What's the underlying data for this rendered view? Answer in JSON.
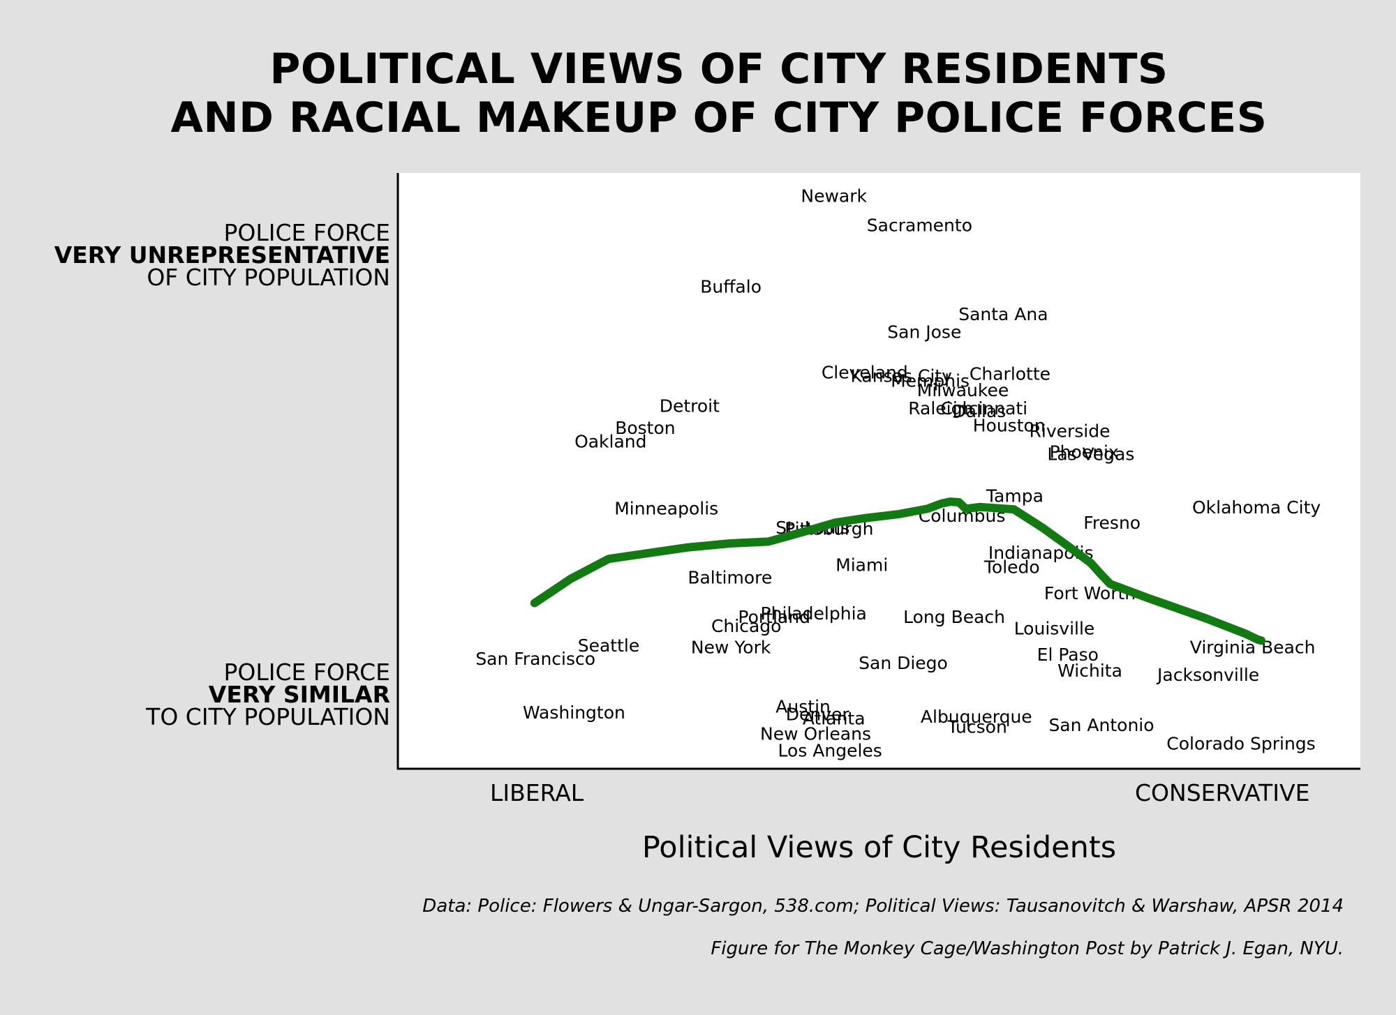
{
  "title_line1": "POLITICAL VIEWS OF CITY RESIDENTS",
  "title_line2": "AND RACIAL MAKEUP OF CITY POLICE FORCES",
  "y_top": {
    "line1": "POLICE FORCE",
    "line2": "VERY UNREPRESENTATIVE",
    "line3": "OF CITY POPULATION"
  },
  "y_bottom": {
    "line1": "POLICE FORCE",
    "line2": "VERY SIMILAR",
    "line3": "TO CITY POPULATION"
  },
  "x_left": "LIBERAL",
  "x_right": "CONSERVATIVE",
  "xlabel": "Political Views of City Residents",
  "source_line1": "Data: Police: Flowers & Ungar-Sargon, 538.com; Political Views: Tausanovitch & Warshaw, APSR 2014",
  "source_line2": "Figure for The Monkey Cage/Washington Post by Patrick J. Egan, NYU.",
  "colors": {
    "background": "#e1e1e1",
    "plot": "#ffffff",
    "trend": "#137a13"
  },
  "chart_data": {
    "type": "scatter",
    "x_scale": "liberal (0) to conservative (1)",
    "y_scale": "police force similar to city population (0) to very unrepresentative (1)",
    "xlim": [
      0,
      1
    ],
    "ylim": [
      0,
      1
    ],
    "grid": false,
    "points": [
      {
        "label": "Newark",
        "x": 0.453,
        "y": 0.962
      },
      {
        "label": "Sacramento",
        "x": 0.542,
        "y": 0.913
      },
      {
        "label": "Buffalo",
        "x": 0.346,
        "y": 0.81
      },
      {
        "label": "Santa Ana",
        "x": 0.629,
        "y": 0.764
      },
      {
        "label": "San Jose",
        "x": 0.547,
        "y": 0.734
      },
      {
        "label": "Cleveland",
        "x": 0.485,
        "y": 0.666
      },
      {
        "label": "Kansas City",
        "x": 0.523,
        "y": 0.66
      },
      {
        "label": "Memphis",
        "x": 0.553,
        "y": 0.652
      },
      {
        "label": "Charlotte",
        "x": 0.636,
        "y": 0.664
      },
      {
        "label": "Milwaukee",
        "x": 0.587,
        "y": 0.636
      },
      {
        "label": "Raleigh",
        "x": 0.564,
        "y": 0.606
      },
      {
        "label": "Cincinnati",
        "x": 0.609,
        "y": 0.606
      },
      {
        "label": "Dallas",
        "x": 0.604,
        "y": 0.601
      },
      {
        "label": "Houston",
        "x": 0.635,
        "y": 0.577
      },
      {
        "label": "Riverside",
        "x": 0.698,
        "y": 0.568
      },
      {
        "label": "Phoenix",
        "x": 0.713,
        "y": 0.533
      },
      {
        "label": "Las Vegas",
        "x": 0.72,
        "y": 0.529
      },
      {
        "label": "Detroit",
        "x": 0.303,
        "y": 0.61
      },
      {
        "label": "Boston",
        "x": 0.257,
        "y": 0.573
      },
      {
        "label": "Oakland",
        "x": 0.221,
        "y": 0.55
      },
      {
        "label": "Tampa",
        "x": 0.641,
        "y": 0.459
      },
      {
        "label": "Oklahoma City",
        "x": 0.892,
        "y": 0.44
      },
      {
        "label": "Minneapolis",
        "x": 0.279,
        "y": 0.438
      },
      {
        "label": "Columbus",
        "x": 0.586,
        "y": 0.426
      },
      {
        "label": "St. Louis",
        "x": 0.431,
        "y": 0.406
      },
      {
        "label": "Pittsburgh",
        "x": 0.448,
        "y": 0.404
      },
      {
        "label": "Fresno",
        "x": 0.742,
        "y": 0.414
      },
      {
        "label": "Indianapolis",
        "x": 0.668,
        "y": 0.364
      },
      {
        "label": "Toledo",
        "x": 0.638,
        "y": 0.34
      },
      {
        "label": "Miami",
        "x": 0.482,
        "y": 0.343
      },
      {
        "label": "Baltimore",
        "x": 0.345,
        "y": 0.322
      },
      {
        "label": "Fort Worth",
        "x": 0.719,
        "y": 0.296
      },
      {
        "label": "Philadelphia",
        "x": 0.432,
        "y": 0.262
      },
      {
        "label": "Portland",
        "x": 0.391,
        "y": 0.256
      },
      {
        "label": "Chicago",
        "x": 0.362,
        "y": 0.241
      },
      {
        "label": "Long Beach",
        "x": 0.578,
        "y": 0.256
      },
      {
        "label": "Louisville",
        "x": 0.682,
        "y": 0.237
      },
      {
        "label": "Seattle",
        "x": 0.219,
        "y": 0.208
      },
      {
        "label": "New York",
        "x": 0.346,
        "y": 0.205
      },
      {
        "label": "Virginia Beach",
        "x": 0.888,
        "y": 0.205
      },
      {
        "label": "San Francisco",
        "x": 0.143,
        "y": 0.186
      },
      {
        "label": "El Paso",
        "x": 0.696,
        "y": 0.193
      },
      {
        "label": "San Diego",
        "x": 0.525,
        "y": 0.179
      },
      {
        "label": "Wichita",
        "x": 0.719,
        "y": 0.166
      },
      {
        "label": "Jacksonville",
        "x": 0.842,
        "y": 0.159
      },
      {
        "label": "Washington",
        "x": 0.183,
        "y": 0.096
      },
      {
        "label": "Austin",
        "x": 0.421,
        "y": 0.106
      },
      {
        "label": "Denver",
        "x": 0.436,
        "y": 0.093
      },
      {
        "label": "Atlanta",
        "x": 0.453,
        "y": 0.086
      },
      {
        "label": "Albuquerque",
        "x": 0.601,
        "y": 0.089
      },
      {
        "label": "Tucson",
        "x": 0.602,
        "y": 0.072
      },
      {
        "label": "San Antonio",
        "x": 0.731,
        "y": 0.075
      },
      {
        "label": "New Orleans",
        "x": 0.434,
        "y": 0.06
      },
      {
        "label": "Colorado Springs",
        "x": 0.876,
        "y": 0.044
      },
      {
        "label": "Los Angeles",
        "x": 0.449,
        "y": 0.032
      }
    ],
    "trend_line": [
      {
        "x": 0.142,
        "y": 0.279
      },
      {
        "x": 0.18,
        "y": 0.32
      },
      {
        "x": 0.219,
        "y": 0.353
      },
      {
        "x": 0.3,
        "y": 0.372
      },
      {
        "x": 0.345,
        "y": 0.379
      },
      {
        "x": 0.385,
        "y": 0.382
      },
      {
        "x": 0.425,
        "y": 0.4
      },
      {
        "x": 0.455,
        "y": 0.414
      },
      {
        "x": 0.484,
        "y": 0.421
      },
      {
        "x": 0.52,
        "y": 0.428
      },
      {
        "x": 0.55,
        "y": 0.437
      },
      {
        "x": 0.565,
        "y": 0.446
      },
      {
        "x": 0.574,
        "y": 0.449
      },
      {
        "x": 0.583,
        "y": 0.448
      },
      {
        "x": 0.59,
        "y": 0.437
      },
      {
        "x": 0.605,
        "y": 0.44
      },
      {
        "x": 0.64,
        "y": 0.436
      },
      {
        "x": 0.67,
        "y": 0.405
      },
      {
        "x": 0.7,
        "y": 0.37
      },
      {
        "x": 0.72,
        "y": 0.346
      },
      {
        "x": 0.73,
        "y": 0.328
      },
      {
        "x": 0.74,
        "y": 0.311
      },
      {
        "x": 0.78,
        "y": 0.287
      },
      {
        "x": 0.84,
        "y": 0.253
      },
      {
        "x": 0.88,
        "y": 0.228
      },
      {
        "x": 0.893,
        "y": 0.218
      },
      {
        "x": 0.897,
        "y": 0.216
      }
    ]
  }
}
